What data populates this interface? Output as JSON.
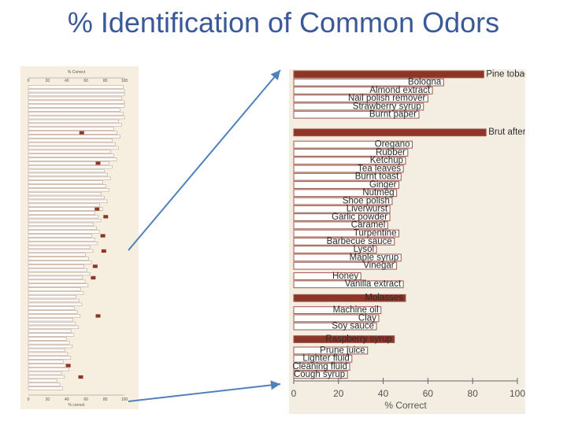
{
  "slide": {
    "title": "% Identification of Common Odors"
  },
  "chart_data": [
    {
      "type": "bar",
      "orientation": "horizontal",
      "panel": "left-thumbnail-full-list",
      "title": "",
      "xlabel": "% Correct",
      "xlabel_top": "% Correct",
      "xlabel_bottom": "% correct",
      "xlim": [
        0,
        100
      ],
      "ticks": [
        "0",
        "20",
        "40",
        "60",
        "80",
        "100"
      ],
      "grid": false,
      "row_count": 80,
      "highlight": [
        {
          "row": 12,
          "value": 58
        },
        {
          "row": 20,
          "value": 75
        },
        {
          "row": 32,
          "value": 74
        },
        {
          "row": 34,
          "value": 83
        },
        {
          "row": 39,
          "value": 80
        },
        {
          "row": 43,
          "value": 81
        },
        {
          "row": 47,
          "value": 72
        },
        {
          "row": 50,
          "value": 70
        },
        {
          "row": 60,
          "value": 75
        },
        {
          "row": 73,
          "value": 44
        },
        {
          "row": 76,
          "value": 57
        }
      ],
      "legibility": "labels too small to read"
    },
    {
      "type": "bar",
      "orientation": "horizontal",
      "panel": "right-zoomed",
      "title": "",
      "xlabel": "% Correct",
      "xlim": [
        0,
        100
      ],
      "ticks": [
        "0",
        "20",
        "40",
        "60",
        "80",
        "100"
      ],
      "grid": false,
      "colors": {
        "outline_bar": "#ffffff",
        "highlight_bar": "#8e3528",
        "bar_stroke": "#9a5a4e"
      },
      "categories": [
        "Pine tobacco",
        "Bologna",
        "Almond extract",
        "Nail polish remover",
        "Strawberry syrup",
        "Burnt paper",
        "Brut aftershave",
        "Oregano",
        "Rubber",
        "Ketchup",
        "Tea leaves",
        "Burnt toast",
        "Ginger",
        "Nutmeg",
        "Shoe polish",
        "Liverwurst",
        "Garlic powder",
        "Caramel",
        "Turpentine",
        "Barbecue sauce",
        "Lysol",
        "Maple syrup",
        "Vinegar",
        "Honey",
        "Vanilla extract",
        "Molasses",
        "Machine oil",
        "Clay",
        "Soy sauce",
        "Raspberry syrup",
        "Prune juice",
        "Lighter fluid",
        "Cleaning fluid",
        "Cough syrup"
      ],
      "values": [
        85,
        67,
        62,
        60,
        58,
        56,
        86,
        53,
        51,
        50,
        49,
        48,
        47,
        46,
        44,
        43,
        43,
        42,
        47,
        45,
        37,
        48,
        46,
        30,
        49,
        50,
        39,
        38,
        37,
        45,
        33,
        26,
        25,
        24
      ],
      "highlighted": [
        "Pine tobacco",
        "Brut aftershave",
        "Molasses",
        "Raspberry syrup"
      ],
      "bar_rows": [
        0,
        1,
        2,
        3,
        4,
        5,
        7.2,
        8.7,
        9.7,
        10.7,
        11.7,
        12.7,
        13.7,
        14.7,
        15.7,
        16.7,
        17.7,
        18.7,
        19.7,
        20.7,
        21.7,
        22.7,
        23.7,
        25,
        26,
        27.7,
        29.2,
        30.2,
        31.2,
        32.8,
        34.2,
        35.2,
        36.2,
        37.2
      ],
      "row_count": 38
    }
  ]
}
